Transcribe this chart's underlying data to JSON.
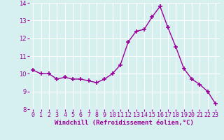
{
  "x": [
    0,
    1,
    2,
    3,
    4,
    5,
    6,
    7,
    8,
    9,
    10,
    11,
    12,
    13,
    14,
    15,
    16,
    17,
    18,
    19,
    20,
    21,
    22,
    23
  ],
  "y": [
    10.2,
    10.0,
    10.0,
    9.7,
    9.8,
    9.7,
    9.7,
    9.6,
    9.5,
    9.7,
    10.0,
    10.5,
    11.8,
    12.4,
    12.5,
    13.2,
    13.8,
    12.6,
    11.5,
    10.3,
    9.7,
    9.4,
    9.0,
    8.3
  ],
  "line_color": "#990099",
  "marker": "+",
  "marker_size": 5,
  "marker_lw": 1.2,
  "bg_color": "#d6f0f0",
  "grid_color": "#ffffff",
  "xlabel": "Windchill (Refroidissement éolien,°C)",
  "xlabel_color": "#990099",
  "tick_color": "#990099",
  "ylim": [
    8,
    14
  ],
  "xlim": [
    -0.5,
    23.5
  ],
  "yticks": [
    8,
    9,
    10,
    11,
    12,
    13,
    14
  ],
  "xtick_labels": [
    "0",
    "1",
    "2",
    "3",
    "4",
    "5",
    "6",
    "7",
    "8",
    "9",
    "10",
    "11",
    "12",
    "13",
    "14",
    "15",
    "16",
    "17",
    "18",
    "19",
    "20",
    "21",
    "22",
    "23"
  ],
  "xticks": [
    0,
    1,
    2,
    3,
    4,
    5,
    6,
    7,
    8,
    9,
    10,
    11,
    12,
    13,
    14,
    15,
    16,
    17,
    18,
    19,
    20,
    21,
    22,
    23
  ],
  "line_width": 1.0,
  "tick_labelsize": 6,
  "xlabel_fontsize": 6.5,
  "xlabel_fontweight": "bold"
}
